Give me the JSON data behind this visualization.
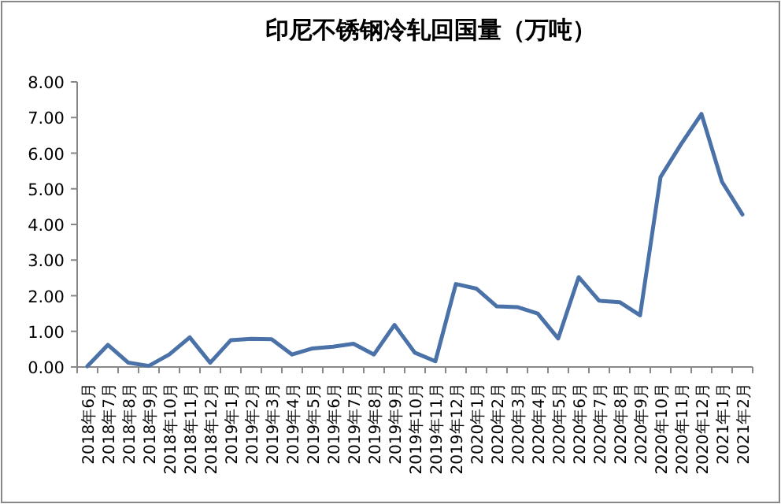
{
  "chart_data": {
    "type": "line",
    "title": "印尼不锈钢冷轧回国量（万吨）",
    "categories": [
      "2018年6月",
      "2018年7月",
      "2018年8月",
      "2018年9月",
      "2018年10月",
      "2018年11月",
      "2018年12月",
      "2019年1月",
      "2019年2月",
      "2019年3月",
      "2019年4月",
      "2019年5月",
      "2019年6月",
      "2019年7月",
      "2019年8月",
      "2019年9月",
      "2019年10月",
      "2019年11月",
      "2019年12月",
      "2020年1月",
      "2020年2月",
      "2020年3月",
      "2020年4月",
      "2020年5月",
      "2020年6月",
      "2020年7月",
      "2020年8月",
      "2020年9月",
      "2020年10月",
      "2020年11月",
      "2020年12月",
      "2021年1月",
      "2021年2月"
    ],
    "series": [
      {
        "color": "#4a72a8",
        "values": [
          0.02,
          0.62,
          0.12,
          0.03,
          0.35,
          0.83,
          0.12,
          0.75,
          0.79,
          0.78,
          0.35,
          0.52,
          0.57,
          0.65,
          0.35,
          1.18,
          0.4,
          0.16,
          2.33,
          2.2,
          1.7,
          1.68,
          1.5,
          0.8,
          2.52,
          1.86,
          1.82,
          1.45,
          5.33,
          6.25,
          7.1,
          5.2,
          4.28
        ]
      }
    ],
    "ylim": [
      0,
      8
    ],
    "yticks": [
      {
        "value": 0,
        "label": "0.00"
      },
      {
        "value": 1,
        "label": "1.00"
      },
      {
        "value": 2,
        "label": "2.00"
      },
      {
        "value": 3,
        "label": "3.00"
      },
      {
        "value": 4,
        "label": "4.00"
      },
      {
        "value": 5,
        "label": "5.00"
      },
      {
        "value": 6,
        "label": "6.00"
      },
      {
        "value": 7,
        "label": "7.00"
      },
      {
        "value": 8,
        "label": "8.00"
      }
    ],
    "grid": false,
    "marker": "none",
    "line_style": "solid"
  }
}
